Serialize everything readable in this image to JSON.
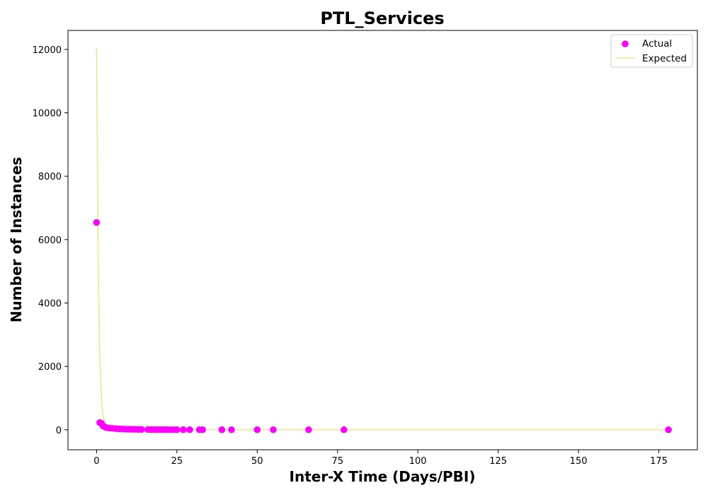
{
  "chart_data": {
    "type": "scatter",
    "title": "PTL_Services",
    "xlabel": "Inter-X Time (Days/PBI)",
    "ylabel": "Number of Instances",
    "xlim": [
      -8.9,
      187
    ],
    "ylim": [
      -630,
      12600
    ],
    "xticks": [
      0,
      25,
      50,
      75,
      100,
      125,
      150,
      175
    ],
    "yticks": [
      0,
      2000,
      4000,
      6000,
      8000,
      10000,
      12000
    ],
    "grid": false,
    "legend_position": "top-right",
    "series": [
      {
        "name": "Actual",
        "kind": "scatter",
        "color": "#ff00ff",
        "points": [
          [
            0,
            6540
          ],
          [
            1,
            225
          ],
          [
            1.5,
            205
          ],
          [
            2,
            120
          ],
          [
            2.5,
            95
          ],
          [
            3,
            70
          ],
          [
            4,
            55
          ],
          [
            5,
            45
          ],
          [
            6,
            35
          ],
          [
            7,
            30
          ],
          [
            8,
            25
          ],
          [
            9,
            20
          ],
          [
            10,
            18
          ],
          [
            11,
            15
          ],
          [
            12,
            12
          ],
          [
            13,
            10
          ],
          [
            14,
            9
          ],
          [
            16,
            7
          ],
          [
            17,
            6
          ],
          [
            18,
            5
          ],
          [
            19,
            5
          ],
          [
            20,
            4
          ],
          [
            21,
            4
          ],
          [
            22,
            3
          ],
          [
            23,
            3
          ],
          [
            24,
            3
          ],
          [
            25,
            2
          ],
          [
            27,
            2
          ],
          [
            29,
            2
          ],
          [
            32,
            1
          ],
          [
            33,
            1
          ],
          [
            39,
            1
          ],
          [
            42,
            1
          ],
          [
            50,
            1
          ],
          [
            55,
            1
          ],
          [
            66,
            1
          ],
          [
            77,
            1
          ],
          [
            178,
            1
          ]
        ]
      },
      {
        "name": "Expected",
        "kind": "line",
        "color": "#f0e68c",
        "points": [
          [
            0,
            12050
          ],
          [
            0.5,
            5300
          ],
          [
            1,
            2300
          ],
          [
            1.5,
            1000
          ],
          [
            2,
            420
          ],
          [
            3,
            120
          ],
          [
            4,
            40
          ],
          [
            5,
            15
          ],
          [
            7,
            4
          ],
          [
            10,
            1
          ],
          [
            25,
            0
          ],
          [
            50,
            0
          ],
          [
            100,
            0
          ],
          [
            150,
            0
          ],
          [
            178,
            0
          ]
        ]
      }
    ]
  }
}
